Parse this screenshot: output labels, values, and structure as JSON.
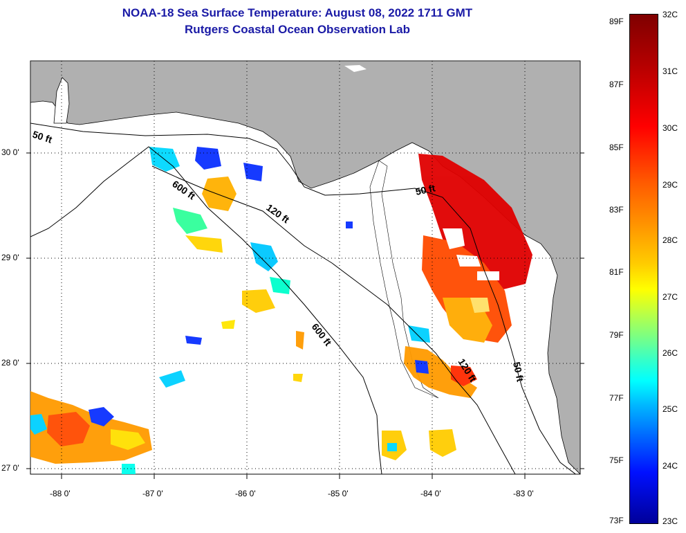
{
  "title": {
    "line1": "NOAA-18 Sea Surface Temperature:  August 08, 2022 1711 GMT",
    "line2": "Rutgers Coastal Ocean Observation Lab"
  },
  "map": {
    "latitude_labels": [
      "30 0'",
      "29 0'",
      "28 0'",
      "27 0'"
    ],
    "longitude_labels": [
      "-88 0'",
      "-87 0'",
      "-86 0'",
      "-85 0'",
      "-84 0'",
      "-83 0'"
    ],
    "depth_contour_labels": [
      "50 ft",
      "600 ft",
      "120 ft",
      "50 ft",
      "600 ft",
      "120 ft",
      "50 ft"
    ],
    "colors": {
      "land": "#b0b0b0",
      "ocean": "#ffffff",
      "gridline": "#000000"
    }
  },
  "colorbar": {
    "fahrenheit_labels": [
      "89F",
      "87F",
      "85F",
      "83F",
      "81F",
      "79F",
      "77F",
      "75F",
      "73F"
    ],
    "celsius_labels": [
      "32C",
      "31C",
      "30C",
      "29C",
      "28C",
      "27C",
      "26C",
      "25C",
      "24C",
      "23C"
    ],
    "colors": [
      "#7f0000",
      "#ff0000",
      "#ff9900",
      "#ffff00",
      "#7fff7f",
      "#00ffff",
      "#0066ff",
      "#00009a"
    ]
  }
}
